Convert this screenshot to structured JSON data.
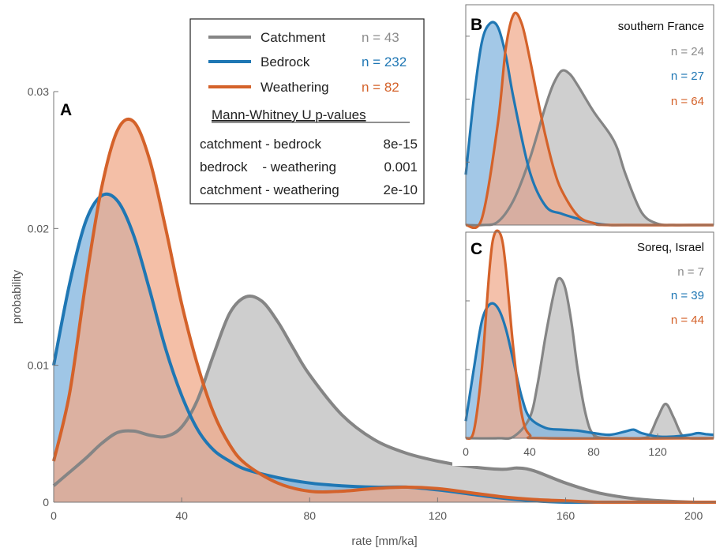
{
  "colors": {
    "catchment": "#858585",
    "catchment_fill": "#bdbdbd",
    "bedrock": "#1f77b4",
    "bedrock_fill": "#7fb3de",
    "weathering": "#d4622a",
    "weathering_fill": "#f0a98a"
  },
  "chart_data": [
    {
      "panel": "A",
      "type": "area",
      "title": "",
      "xlabel": "rate [mm/ka]",
      "ylabel": "probability",
      "xlim": [
        0,
        207
      ],
      "ylim": [
        0,
        0.03
      ],
      "xticks": [
        "0",
        "40",
        "80",
        "120",
        "160",
        "200"
      ],
      "yticks": [
        "0",
        "0.01",
        "0.02",
        "0.03"
      ],
      "grid": false,
      "legend_position": "top-center",
      "legend": [
        {
          "name": "Catchment",
          "n": "n = 43"
        },
        {
          "name": "Bedrock",
          "n": "n = 232"
        },
        {
          "name": "Weathering",
          "n": "n = 82"
        }
      ],
      "stats_title": "Mann-Whitney U p-values",
      "stats": [
        {
          "pair": "catchment - bedrock",
          "p": "8e-15"
        },
        {
          "pair": "bedrock    - weathering",
          "p": "0.001"
        },
        {
          "pair": "catchment - weathering",
          "p": "2e-10"
        }
      ],
      "series": [
        {
          "key": "catchment",
          "x": [
            0,
            5,
            10,
            15,
            20,
            25,
            30,
            35,
            40,
            45,
            50,
            55,
            60,
            65,
            70,
            75,
            80,
            90,
            100,
            110,
            120,
            130,
            140,
            145,
            150,
            160,
            170,
            180,
            190,
            200,
            207
          ],
          "y": [
            0.0012,
            0.0022,
            0.0032,
            0.0043,
            0.0051,
            0.0052,
            0.0049,
            0.0048,
            0.0055,
            0.0075,
            0.0108,
            0.0138,
            0.015,
            0.0147,
            0.0132,
            0.0112,
            0.0093,
            0.0064,
            0.0046,
            0.0036,
            0.003,
            0.0026,
            0.0024,
            0.0025,
            0.0023,
            0.0014,
            0.0007,
            0.0003,
            0.0001,
            0,
            0
          ]
        },
        {
          "key": "bedrock",
          "x": [
            0,
            5,
            10,
            15,
            20,
            25,
            30,
            35,
            40,
            45,
            50,
            55,
            60,
            70,
            80,
            90,
            100,
            110,
            120,
            130,
            140,
            150,
            160,
            170,
            180,
            190,
            200,
            207
          ],
          "y": [
            0.01,
            0.016,
            0.0205,
            0.0224,
            0.022,
            0.0195,
            0.0155,
            0.0112,
            0.0078,
            0.0053,
            0.0038,
            0.003,
            0.0024,
            0.0018,
            0.0014,
            0.0012,
            0.0011,
            0.0011,
            0.0009,
            0.0006,
            0.0003,
            0.0001,
            0,
            0,
            0,
            0,
            0,
            0
          ]
        },
        {
          "key": "weathering",
          "x": [
            0,
            5,
            10,
            15,
            20,
            25,
            30,
            35,
            40,
            45,
            50,
            55,
            60,
            70,
            80,
            90,
            100,
            110,
            120,
            130,
            140,
            150,
            160,
            170,
            180,
            190,
            200,
            207
          ],
          "y": [
            0.003,
            0.008,
            0.016,
            0.023,
            0.0272,
            0.0278,
            0.025,
            0.02,
            0.0145,
            0.01,
            0.0065,
            0.0042,
            0.0028,
            0.0014,
            0.0008,
            0.0008,
            0.001,
            0.0011,
            0.001,
            0.0007,
            0.0004,
            0.0002,
            0.0001,
            0,
            0,
            0,
            0,
            0
          ]
        }
      ]
    },
    {
      "panel": "B",
      "type": "area",
      "title": "southern France",
      "xlim": [
        0,
        155
      ],
      "ylim": [
        0,
        0.035
      ],
      "legend": [
        {
          "key": "catchment",
          "n": "n = 24"
        },
        {
          "key": "bedrock",
          "n": "n = 27"
        },
        {
          "key": "weathering",
          "n": "n = 64"
        }
      ],
      "series": [
        {
          "key": "catchment",
          "x": [
            0,
            10,
            20,
            30,
            40,
            50,
            55,
            60,
            65,
            70,
            80,
            90,
            95,
            100,
            110,
            120,
            130,
            140,
            155
          ],
          "y": [
            0,
            0,
            0.0005,
            0.004,
            0.0105,
            0.019,
            0.0225,
            0.0245,
            0.024,
            0.0222,
            0.018,
            0.0145,
            0.012,
            0.008,
            0.002,
            0.0002,
            0,
            0,
            0
          ]
        },
        {
          "key": "bedrock",
          "x": [
            0,
            5,
            10,
            15,
            20,
            25,
            30,
            40,
            50,
            60,
            70,
            80,
            90,
            100,
            155
          ],
          "y": [
            0.008,
            0.02,
            0.029,
            0.032,
            0.0315,
            0.027,
            0.02,
            0.0085,
            0.003,
            0.0018,
            0.001,
            0.0003,
            0,
            0,
            0
          ]
        },
        {
          "key": "weathering",
          "x": [
            0,
            10,
            20,
            25,
            30,
            35,
            40,
            45,
            50,
            55,
            60,
            70,
            80,
            90,
            155
          ],
          "y": [
            0,
            0.001,
            0.016,
            0.028,
            0.0335,
            0.032,
            0.0265,
            0.02,
            0.014,
            0.009,
            0.0055,
            0.0015,
            0.0003,
            0,
            0
          ]
        }
      ]
    },
    {
      "panel": "C",
      "type": "area",
      "title": "Soreq, Israel",
      "xlim": [
        0,
        155
      ],
      "ylim": [
        0,
        0.06
      ],
      "xticks": [
        "0",
        "40",
        "80",
        "120"
      ],
      "legend": [
        {
          "key": "catchment",
          "n": "n = 7"
        },
        {
          "key": "bedrock",
          "n": "n = 39"
        },
        {
          "key": "weathering",
          "n": "n = 44"
        }
      ],
      "series": [
        {
          "key": "catchment",
          "x": [
            0,
            20,
            30,
            40,
            45,
            50,
            55,
            58,
            62,
            66,
            70,
            75,
            80,
            90,
            100,
            110,
            115,
            120,
            125,
            130,
            135,
            140,
            155
          ],
          "y": [
            0,
            0,
            0.0005,
            0.006,
            0.016,
            0.03,
            0.042,
            0.0465,
            0.044,
            0.034,
            0.02,
            0.007,
            0.001,
            0,
            0,
            0,
            0.001,
            0.006,
            0.01,
            0.006,
            0.001,
            0,
            0
          ]
        },
        {
          "key": "bedrock",
          "x": [
            0,
            5,
            10,
            15,
            20,
            25,
            30,
            35,
            40,
            50,
            60,
            70,
            80,
            90,
            100,
            105,
            110,
            120,
            130,
            140,
            145,
            150,
            155
          ],
          "y": [
            0.005,
            0.02,
            0.034,
            0.039,
            0.038,
            0.032,
            0.022,
            0.012,
            0.006,
            0.003,
            0.0025,
            0.0022,
            0.0015,
            0.001,
            0.002,
            0.0025,
            0.0015,
            0.0005,
            0.0005,
            0.001,
            0.0015,
            0.0012,
            0.001
          ]
        },
        {
          "key": "weathering",
          "x": [
            0,
            5,
            10,
            15,
            18,
            22,
            25,
            30,
            35,
            40,
            50,
            155
          ],
          "y": [
            0,
            0.002,
            0.02,
            0.05,
            0.0595,
            0.059,
            0.05,
            0.025,
            0.007,
            0.001,
            0,
            0
          ]
        }
      ]
    }
  ]
}
